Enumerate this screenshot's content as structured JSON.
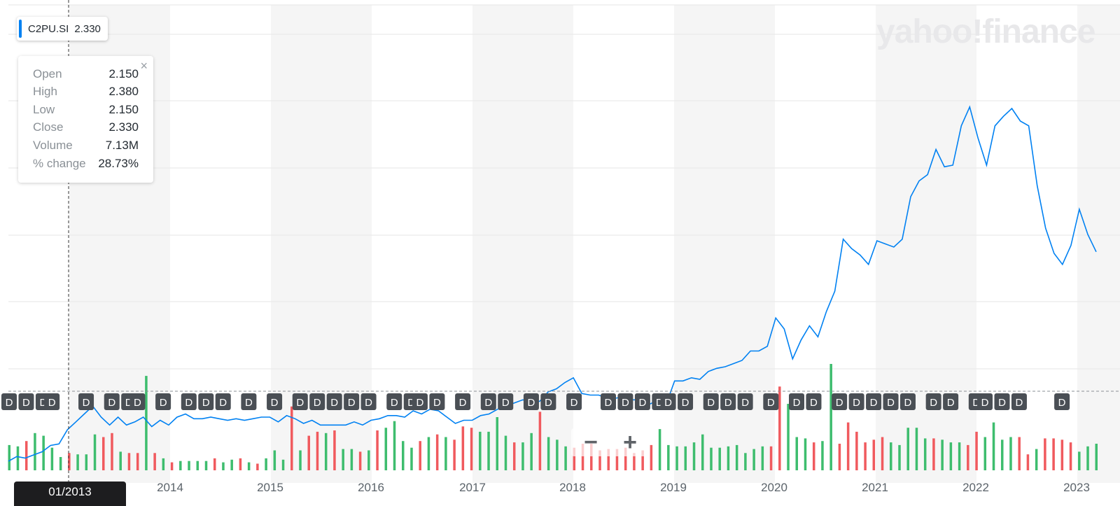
{
  "ticker": {
    "symbol": "C2PU.SI",
    "value": "2.330",
    "accent": "#0081f2"
  },
  "tooltip": {
    "rows": [
      {
        "label": "Open",
        "value": "2.150"
      },
      {
        "label": "High",
        "value": "2.380"
      },
      {
        "label": "Low",
        "value": "2.150"
      },
      {
        "label": "Close",
        "value": "2.330"
      },
      {
        "label": "Volume",
        "value": "7.13M"
      },
      {
        "label": "% change",
        "value": "28.73%"
      }
    ],
    "close_icon": "close-icon"
  },
  "watermark": "yahoo!finance",
  "zoom": {
    "minus": "−",
    "plus": "+"
  },
  "crosshair_date": "01/2013",
  "colors": {
    "line": "#0081f2",
    "up": "#3ebd6e",
    "down": "#f05a5e",
    "band": "#f5f5f5",
    "marker": "#4a4f55"
  },
  "chart_data": {
    "type": "line",
    "x_ticks": [
      "2014",
      "2015",
      "2016",
      "2017",
      "2018",
      "2019",
      "2020",
      "2021",
      "2022",
      "2023"
    ],
    "series": [
      {
        "values": [
          0.7,
          0.73,
          0.72,
          0.74,
          0.76,
          0.8,
          0.81,
          0.9,
          0.95,
          1.0,
          1.05,
          0.98,
          0.93,
          0.98,
          0.93,
          0.95,
          0.98,
          0.92,
          0.96,
          0.93,
          0.98,
          1.0,
          0.97,
          0.97,
          0.98,
          0.97,
          0.96,
          0.97,
          0.96,
          0.97,
          0.98,
          0.98,
          0.95,
          0.99,
          0.97,
          0.94,
          0.96,
          0.93,
          0.93,
          0.93,
          0.93,
          0.95,
          0.93,
          0.96,
          0.97,
          0.99,
          0.99,
          0.98,
          1.02,
          1.0,
          1.03,
          1.02,
          0.98,
          0.94,
          0.96,
          0.96,
          0.99,
          1.0,
          1.03,
          1.05,
          1.07,
          1.09,
          1.08,
          1.08,
          1.14,
          1.16,
          1.2,
          1.23,
          1.13,
          1.12,
          1.12,
          1.1,
          1.1,
          1.11,
          1.09,
          1.09,
          1.06,
          1.09,
          1.06,
          1.21,
          1.21,
          1.23,
          1.22,
          1.27,
          1.29,
          1.3,
          1.32,
          1.34,
          1.4,
          1.4,
          1.43,
          1.61,
          1.54,
          1.35,
          1.47,
          1.56,
          1.49,
          1.65,
          1.78,
          2.11,
          2.05,
          2.01,
          1.95,
          2.1,
          2.08,
          2.06,
          2.11,
          2.38,
          2.48,
          2.52,
          2.68,
          2.57,
          2.58,
          2.83,
          2.95,
          2.75,
          2.58,
          2.83,
          2.89,
          2.94,
          2.86,
          2.83,
          2.45,
          2.18,
          2.02,
          1.95,
          2.07,
          2.3,
          2.14,
          2.03
        ]
      }
    ],
    "volume": [
      {
        "v": 1.9,
        "up": true
      },
      {
        "v": 1.8,
        "up": true
      },
      {
        "v": 2.2,
        "up": false
      },
      {
        "v": 2.8,
        "up": true
      },
      {
        "v": 2.6,
        "up": true
      },
      {
        "v": 1.7,
        "up": true
      },
      {
        "v": 1.0,
        "up": true
      },
      {
        "v": 1.3,
        "up": false
      },
      {
        "v": 1.2,
        "up": true
      },
      {
        "v": 1.2,
        "up": true
      },
      {
        "v": 2.7,
        "up": true
      },
      {
        "v": 2.5,
        "up": false
      },
      {
        "v": 2.8,
        "up": false
      },
      {
        "v": 1.4,
        "up": true
      },
      {
        "v": 1.3,
        "up": false
      },
      {
        "v": 1.3,
        "up": false
      },
      {
        "v": 7.1,
        "up": true
      },
      {
        "v": 1.3,
        "up": false
      },
      {
        "v": 0.9,
        "up": true
      },
      {
        "v": 0.6,
        "up": false
      },
      {
        "v": 0.7,
        "up": true
      },
      {
        "v": 0.7,
        "up": true
      },
      {
        "v": 0.7,
        "up": true
      },
      {
        "v": 0.7,
        "up": true
      },
      {
        "v": 0.9,
        "up": false
      },
      {
        "v": 0.6,
        "up": true
      },
      {
        "v": 0.8,
        "up": true
      },
      {
        "v": 0.9,
        "up": false
      },
      {
        "v": 0.6,
        "up": true
      },
      {
        "v": 0.5,
        "up": false
      },
      {
        "v": 0.9,
        "up": true
      },
      {
        "v": 1.5,
        "up": true
      },
      {
        "v": 0.8,
        "up": true
      },
      {
        "v": 4.8,
        "up": false
      },
      {
        "v": 1.5,
        "up": true
      },
      {
        "v": 2.6,
        "up": false
      },
      {
        "v": 2.9,
        "up": false
      },
      {
        "v": 2.8,
        "up": true
      },
      {
        "v": 3.0,
        "up": false
      },
      {
        "v": 1.6,
        "up": true
      },
      {
        "v": 1.6,
        "up": true
      },
      {
        "v": 1.4,
        "up": false
      },
      {
        "v": 1.5,
        "up": true
      },
      {
        "v": 3.0,
        "up": false
      },
      {
        "v": 3.2,
        "up": true
      },
      {
        "v": 3.7,
        "up": true
      },
      {
        "v": 2.2,
        "up": true
      },
      {
        "v": 1.7,
        "up": true
      },
      {
        "v": 2.2,
        "up": false
      },
      {
        "v": 2.5,
        "up": true
      },
      {
        "v": 2.7,
        "up": false
      },
      {
        "v": 2.5,
        "up": true
      },
      {
        "v": 2.3,
        "up": false
      },
      {
        "v": 3.3,
        "up": false
      },
      {
        "v": 3.2,
        "up": false
      },
      {
        "v": 2.9,
        "up": true
      },
      {
        "v": 2.9,
        "up": true
      },
      {
        "v": 4.0,
        "up": true
      },
      {
        "v": 2.6,
        "up": true
      },
      {
        "v": 2.1,
        "up": false
      },
      {
        "v": 2.1,
        "up": true
      },
      {
        "v": 2.8,
        "up": true
      },
      {
        "v": 4.4,
        "up": false
      },
      {
        "v": 2.5,
        "up": true
      },
      {
        "v": 2.3,
        "up": true
      },
      {
        "v": 1.8,
        "up": true
      },
      {
        "v": 1.7,
        "up": false
      },
      {
        "v": 2.0,
        "up": false
      },
      {
        "v": 2.0,
        "up": false
      },
      {
        "v": 1.5,
        "up": false
      },
      {
        "v": 1.6,
        "up": false
      },
      {
        "v": 1.6,
        "up": false
      },
      {
        "v": 1.7,
        "up": false
      },
      {
        "v": 1.3,
        "up": false
      },
      {
        "v": 1.5,
        "up": false
      },
      {
        "v": 1.9,
        "up": false
      },
      {
        "v": 3.1,
        "up": true
      },
      {
        "v": 1.9,
        "up": true
      },
      {
        "v": 1.8,
        "up": true
      },
      {
        "v": 1.8,
        "up": true
      },
      {
        "v": 2.1,
        "up": true
      },
      {
        "v": 2.7,
        "up": true
      },
      {
        "v": 1.7,
        "up": true
      },
      {
        "v": 1.7,
        "up": true
      },
      {
        "v": 1.8,
        "up": true
      },
      {
        "v": 1.9,
        "up": true
      },
      {
        "v": 1.3,
        "up": true
      },
      {
        "v": 1.6,
        "up": true
      },
      {
        "v": 1.8,
        "up": true
      },
      {
        "v": 1.8,
        "up": false
      },
      {
        "v": 6.3,
        "up": false
      },
      {
        "v": 5.0,
        "up": true
      },
      {
        "v": 2.5,
        "up": true
      },
      {
        "v": 2.4,
        "up": true
      },
      {
        "v": 2.1,
        "up": false
      },
      {
        "v": 2.2,
        "up": true
      },
      {
        "v": 8.0,
        "up": true
      },
      {
        "v": 2.0,
        "up": false
      },
      {
        "v": 3.6,
        "up": false
      },
      {
        "v": 2.9,
        "up": false
      },
      {
        "v": 2.1,
        "up": false
      },
      {
        "v": 2.3,
        "up": false
      },
      {
        "v": 2.5,
        "up": false
      },
      {
        "v": 2.1,
        "up": true
      },
      {
        "v": 1.9,
        "up": true
      },
      {
        "v": 3.2,
        "up": true
      },
      {
        "v": 3.2,
        "up": true
      },
      {
        "v": 2.4,
        "up": true
      },
      {
        "v": 2.4,
        "up": false
      },
      {
        "v": 2.3,
        "up": true
      },
      {
        "v": 2.1,
        "up": true
      },
      {
        "v": 2.1,
        "up": true
      },
      {
        "v": 1.9,
        "up": false
      },
      {
        "v": 2.9,
        "up": false
      },
      {
        "v": 2.5,
        "up": true
      },
      {
        "v": 3.6,
        "up": true
      },
      {
        "v": 2.3,
        "up": true
      },
      {
        "v": 2.5,
        "up": true
      },
      {
        "v": 2.5,
        "up": false
      },
      {
        "v": 1.2,
        "up": false
      },
      {
        "v": 1.6,
        "up": true
      },
      {
        "v": 2.4,
        "up": false
      },
      {
        "v": 2.4,
        "up": false
      },
      {
        "v": 2.3,
        "up": false
      },
      {
        "v": 2.1,
        "up": false
      },
      {
        "v": 1.4,
        "up": true
      },
      {
        "v": 1.8,
        "up": true
      },
      {
        "v": 2.0,
        "up": true
      }
    ],
    "dividend_marker_label": "D",
    "dividend_marker_index": [
      0,
      2,
      4,
      5,
      9,
      12,
      14,
      15,
      18,
      21,
      23,
      25,
      28,
      31,
      34,
      36,
      38,
      40,
      42,
      45,
      47,
      48,
      50,
      53,
      56,
      58,
      61,
      63,
      66,
      70,
      72,
      74,
      76,
      77,
      79,
      82,
      84,
      86,
      89,
      92,
      94,
      97,
      99,
      101,
      103,
      105,
      108,
      110,
      113,
      114,
      116,
      118,
      123
    ]
  }
}
